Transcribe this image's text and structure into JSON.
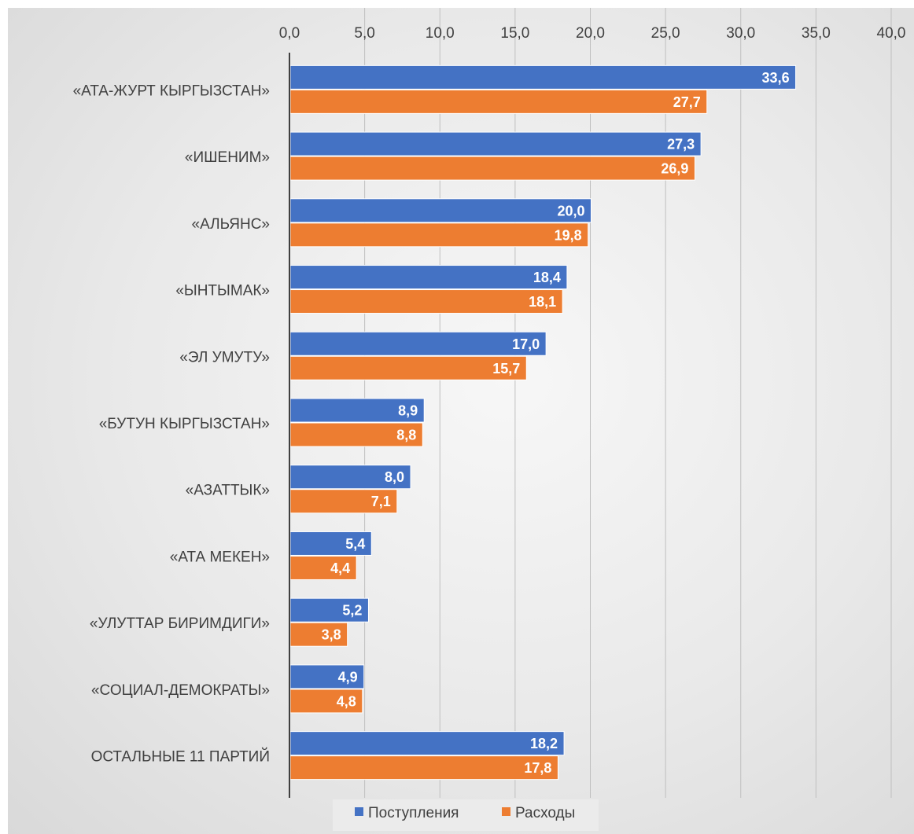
{
  "chart_data": {
    "type": "bar",
    "orientation": "horizontal",
    "categories": [
      "«АТА-ЖУРТ КЫРГЫЗСТАН»",
      "«ИШЕНИМ»",
      "«АЛЬЯНС»",
      "«ЫНТЫМАК»",
      "«ЭЛ УМУТУ»",
      "«БУТУН КЫРГЫЗСТАН»",
      "«АЗАТТЫК»",
      "«АТА МЕКЕН»",
      "«УЛУТТАР БИРИМДИГИ»",
      "«СОЦИАЛ-ДЕМОКРАТЫ»",
      "ОСТАЛЬНЫЕ 11 ПАРТИЙ"
    ],
    "series": [
      {
        "name": "Поступления",
        "color": "#4472c4",
        "values": [
          33.6,
          27.3,
          20.0,
          18.4,
          17.0,
          8.9,
          8.0,
          5.4,
          5.2,
          4.9,
          18.2
        ],
        "labels": [
          "33,6",
          "27,3",
          "20,0",
          "18,4",
          "17,0",
          "8,9",
          "8,0",
          "5,4",
          "5,2",
          "4,9",
          "18,2"
        ]
      },
      {
        "name": "Расходы",
        "color": "#ed7d31",
        "values": [
          27.7,
          26.9,
          19.8,
          18.1,
          15.7,
          8.8,
          7.1,
          4.4,
          3.8,
          4.8,
          17.8
        ],
        "labels": [
          "27,7",
          "26,9",
          "19,8",
          "18,1",
          "15,7",
          "8,8",
          "7,1",
          "4,4",
          "3,8",
          "4,8",
          "17,8"
        ]
      }
    ],
    "xlim": [
      0,
      40
    ],
    "xticks": [
      0,
      5,
      10,
      15,
      20,
      25,
      30,
      35,
      40
    ],
    "xtick_labels": [
      "0,0",
      "5,0",
      "10,0",
      "15,0",
      "20,0",
      "25,0",
      "30,0",
      "35,0",
      "40,0"
    ],
    "x_axis_position": "top",
    "grid": true,
    "legend_position": "bottom"
  }
}
